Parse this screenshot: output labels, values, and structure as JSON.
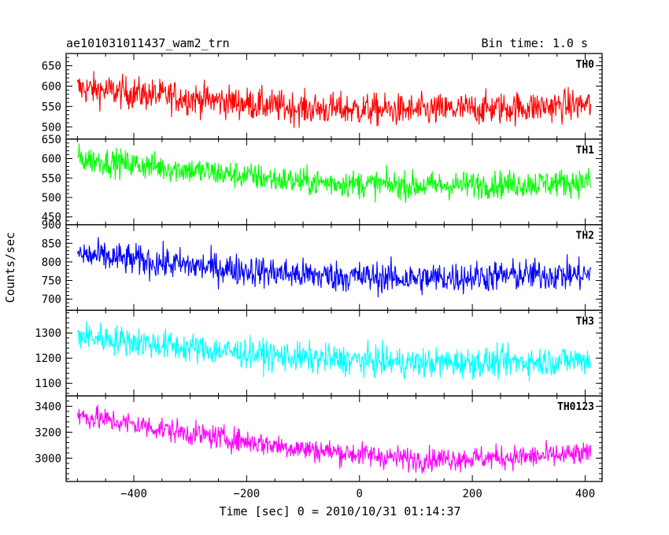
{
  "header": {
    "title": "ae101031011437_wam2_trn",
    "bin_time": "Bin time: 1.0 s"
  },
  "chart_data": {
    "type": "line",
    "xlabel": "Time [sec] 0 = 2010/10/31 01:14:37",
    "ylabel": "Counts/sec",
    "xlim": [
      -520,
      430
    ],
    "x_ticks": [
      -400,
      -200,
      0,
      200,
      400
    ],
    "x_range_data": [
      -500,
      410
    ],
    "panels": [
      {
        "name": "TH0",
        "color": "#ff0000",
        "ylim": [
          470,
          680
        ],
        "y_ticks": [
          500,
          550,
          600,
          650
        ],
        "trend": [
          [
            -500,
            595
          ],
          [
            -300,
            570
          ],
          [
            -100,
            545
          ],
          [
            100,
            540
          ],
          [
            300,
            548
          ],
          [
            410,
            555
          ]
        ],
        "noise": 28
      },
      {
        "name": "TH1",
        "color": "#00ff00",
        "ylim": [
          430,
          650
        ],
        "y_ticks": [
          450,
          500,
          550,
          600,
          650
        ],
        "trend": [
          [
            -500,
            600
          ],
          [
            -300,
            570
          ],
          [
            -100,
            540
          ],
          [
            100,
            530
          ],
          [
            300,
            535
          ],
          [
            410,
            540
          ]
        ],
        "noise": 25
      },
      {
        "name": "TH2",
        "color": "#0000ff",
        "ylim": [
          670,
          900
        ],
        "y_ticks": [
          700,
          750,
          800,
          850,
          900
        ],
        "trend": [
          [
            -500,
            820
          ],
          [
            -300,
            790
          ],
          [
            -100,
            765
          ],
          [
            100,
            755
          ],
          [
            300,
            765
          ],
          [
            410,
            765
          ]
        ],
        "noise": 30
      },
      {
        "name": "TH3",
        "color": "#00ffff",
        "ylim": [
          1050,
          1390
        ],
        "y_ticks": [
          1100,
          1200,
          1300
        ],
        "trend": [
          [
            -500,
            1290
          ],
          [
            -300,
            1240
          ],
          [
            -100,
            1200
          ],
          [
            100,
            1180
          ],
          [
            300,
            1185
          ],
          [
            410,
            1195
          ]
        ],
        "noise": 42
      },
      {
        "name": "TH0123",
        "color": "#ff00ff",
        "ylim": [
          2820,
          3480
        ],
        "y_ticks": [
          3000,
          3200,
          3400
        ],
        "trend": [
          [
            -500,
            3330
          ],
          [
            -300,
            3190
          ],
          [
            -100,
            3070
          ],
          [
            100,
            2990
          ],
          [
            300,
            3010
          ],
          [
            410,
            3030
          ]
        ],
        "noise": 65
      }
    ]
  }
}
